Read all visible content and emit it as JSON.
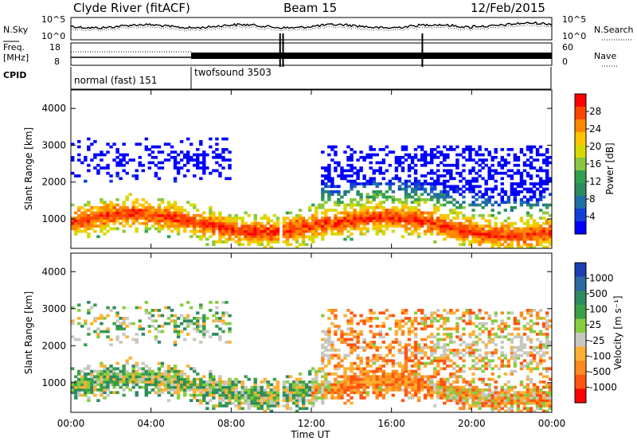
{
  "header": {
    "station": "Clyde River (fitACF)",
    "beam": "Beam 15",
    "date": "12/Feb/2015"
  },
  "strips": {
    "nsky": {
      "label": "N.Sky",
      "top_tick": "10^5",
      "bottom_tick": "10^0"
    },
    "nsearch": {
      "label": "N.Search",
      "top_tick": "10^5",
      "bottom_tick": "10^0"
    },
    "freq": {
      "label_line1": "Freq.",
      "label_line2": "[MHz]",
      "top_tick": "18",
      "bottom_tick": "8"
    },
    "nave": {
      "label": "Nave",
      "top_tick": "60",
      "bottom_tick": "0"
    },
    "cpid": {
      "label": "CPID",
      "mode1": "normal (fast) 151",
      "mode2": "twofsound 3503"
    }
  },
  "chart_data": [
    {
      "type": "heatmap",
      "name": "power",
      "ylabel": "Slant Range [km]",
      "ylim": [
        200,
        4500
      ],
      "y_ticks": [
        "1000",
        "2000",
        "3000",
        "4000"
      ],
      "xlim": [
        0,
        24
      ],
      "colorbar": {
        "label": "Power [dB]",
        "ticks": [
          "28",
          "24",
          "20",
          "16",
          "12",
          "8",
          "4"
        ],
        "colors": [
          "#ff0000",
          "#ff4400",
          "#ff8800",
          "#ffc400",
          "#d8d800",
          "#88c840",
          "#30a050",
          "#2e8a60",
          "#2070a8",
          "#1040d8",
          "#0000ff"
        ],
        "range": [
          0,
          32
        ]
      }
    },
    {
      "type": "heatmap",
      "name": "velocity",
      "ylabel": "Slant Range [km]",
      "ylim": [
        200,
        4500
      ],
      "y_ticks": [
        "1000",
        "2000",
        "3000",
        "4000"
      ],
      "xlim": [
        0,
        24
      ],
      "xlabel": "Time UT",
      "x_ticks": [
        "00:00",
        "04:00",
        "08:00",
        "12:00",
        "16:00",
        "20:00",
        "00:00"
      ],
      "colorbar": {
        "label": "Velocity [m s⁻¹]",
        "ticks": [
          "1000",
          "500",
          "100",
          "25",
          "-25",
          "-100",
          "-500",
          "-1000"
        ],
        "colors": [
          "#1a3fb0",
          "#2a6aa0",
          "#2e8a60",
          "#3aa048",
          "#88cc40",
          "#c8c8c0",
          "#ffb030",
          "#ff8820",
          "#ff5510",
          "#ff0000"
        ]
      },
      "ground_scatter_color": "#c0c0c0"
    }
  ]
}
